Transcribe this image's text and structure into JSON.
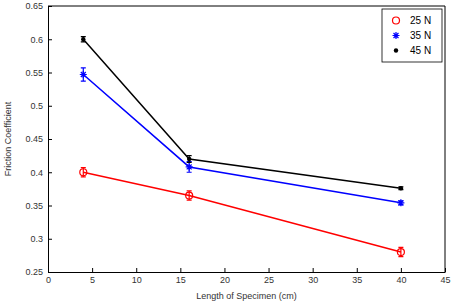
{
  "chart_data": {
    "type": "line",
    "x_label": "Length of Specimen (cm)",
    "y_label": "Friction Coefficient",
    "x": [
      4,
      16,
      40
    ],
    "series": [
      {
        "name": "25 N",
        "color": "#ff0000",
        "marker": "circle",
        "line_style": "solid",
        "values": [
          0.4,
          0.365,
          0.28
        ],
        "errors": [
          0.007,
          0.007,
          0.007
        ]
      },
      {
        "name": "35 N",
        "color": "#0000ff",
        "marker": "asterisk",
        "line_style": "solid",
        "values": [
          0.547,
          0.408,
          0.354
        ],
        "errors": [
          0.01,
          0.008,
          0.003
        ]
      },
      {
        "name": "45 N",
        "color": "#000000",
        "marker": "point",
        "line_style": "solid",
        "values": [
          0.6,
          0.42,
          0.376
        ],
        "errors": [
          0.004,
          0.005,
          0.002
        ]
      }
    ],
    "xlim": [
      0,
      45
    ],
    "xticks": [
      0,
      5,
      10,
      15,
      20,
      25,
      30,
      35,
      40,
      45
    ],
    "ylim": [
      0.25,
      0.65
    ],
    "yticks": [
      0.25,
      0.3,
      0.35,
      0.4,
      0.45,
      0.5,
      0.55,
      0.6,
      0.65
    ],
    "grid": false,
    "legend": "upper right"
  }
}
